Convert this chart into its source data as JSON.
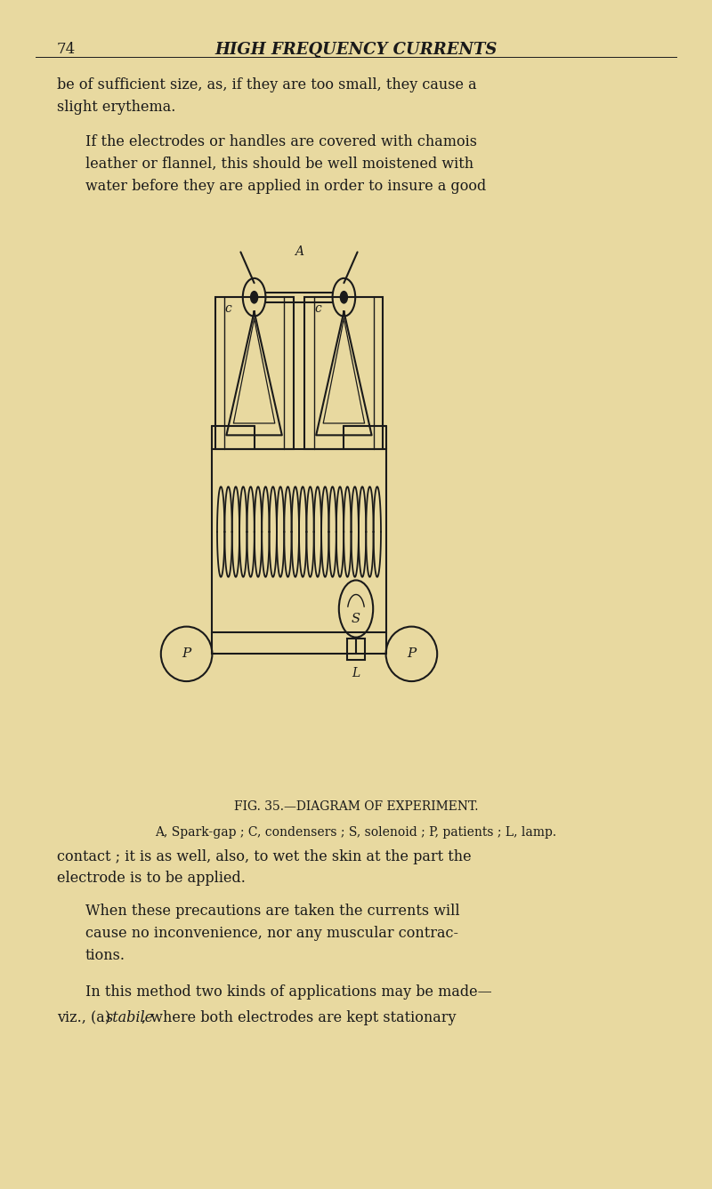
{
  "bg_color": "#e8d9a0",
  "text_color": "#1a1a1a",
  "page_number": "74",
  "header_title": "HIGH FREQUENCY CURRENTS",
  "para1": "be of sufficient size, as, if they are too small, they cause a\nslight erythema.",
  "para2_indent": "If the electrodes or handles are covered with chamois\nleather or flannel, this should be well moistened with\nwater before they are applied in order to insure a good",
  "fig_caption1": "FIG. 35.—DIAGRAM OF EXPERIMENT.",
  "fig_caption2": "A, Spark-gap ; C, condensers ; S, solenoid ; P, patients ; L, lamp.",
  "para3": "contact ; it is as well, also, to wet the skin at the part the\nelectrode is to be applied.",
  "para4_indent": "When these precautions are taken the currents will\ncause no inconvenience, nor any muscular contrac-\ntions.",
  "para5_line1": "In this method two kinds of applications may be made—",
  "para5_line2a": "viz., (a) ",
  "para5_line2b": "stabile",
  "para5_line2c": ", where both electrodes are kept stationary",
  "line_color": "#1a1a1a"
}
